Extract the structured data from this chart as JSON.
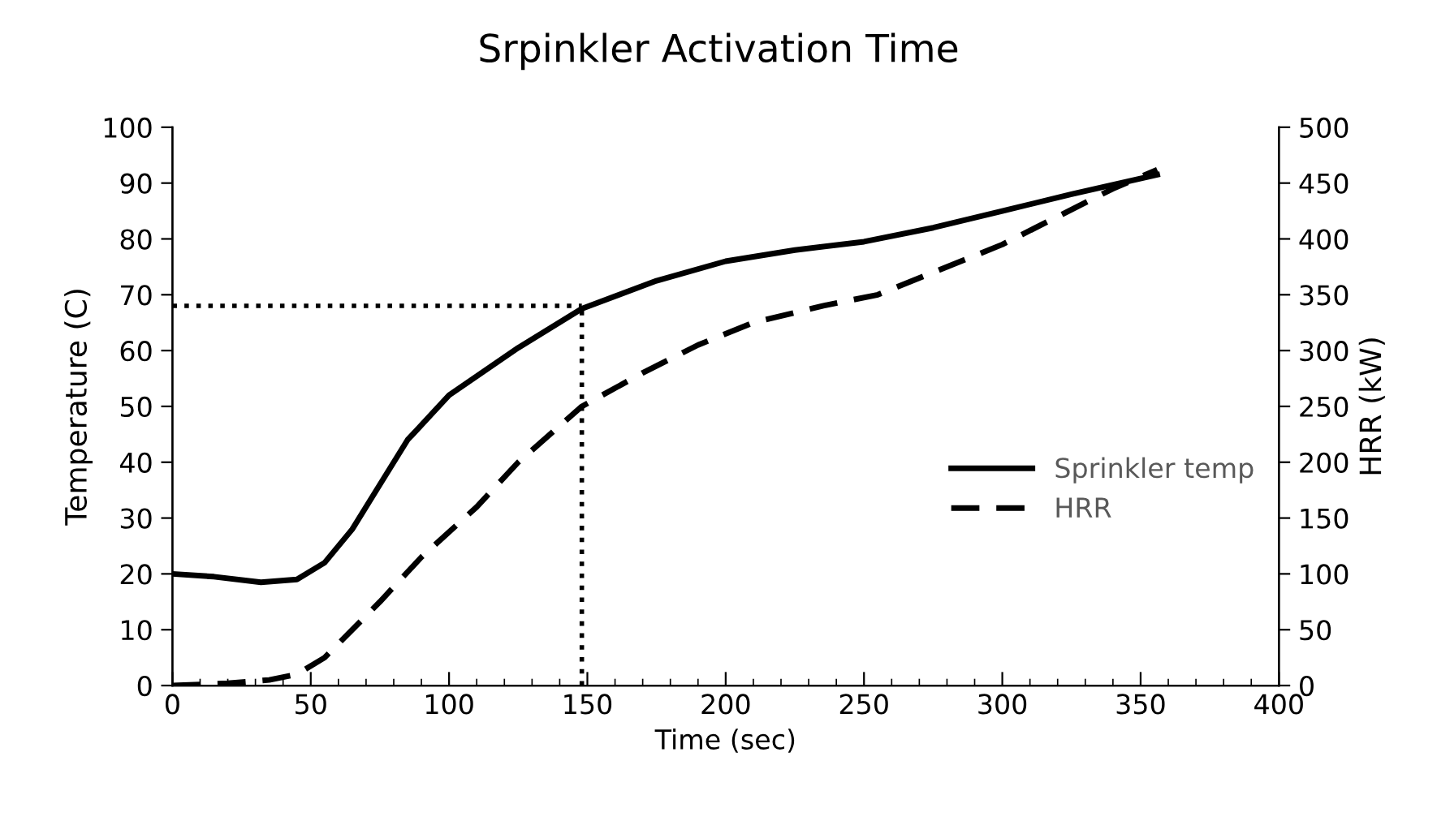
{
  "chart_data": {
    "type": "line",
    "title": "Srpinkler Activation Time",
    "xlabel": "Time (sec)",
    "ylabel": "Temperature (C)",
    "y2label": "HRR (kW)",
    "xlim": [
      0,
      400
    ],
    "xticks": [
      0,
      50,
      100,
      150,
      200,
      250,
      300,
      350,
      400
    ],
    "ylim": [
      0,
      100
    ],
    "yticks": [
      0,
      10,
      20,
      30,
      40,
      50,
      60,
      70,
      80,
      90,
      100
    ],
    "y2lim": [
      0,
      500
    ],
    "y2ticks": [
      0,
      50,
      100,
      150,
      200,
      250,
      300,
      350,
      400,
      450,
      500
    ],
    "grid": false,
    "legend": "right",
    "marker": "none",
    "series": [
      {
        "name": "Sprinkler temp",
        "color": "#000000",
        "line_style": "solid",
        "x": [
          0,
          15,
          32,
          45,
          55,
          65,
          75,
          85,
          100,
          125,
          148,
          175,
          200,
          225,
          250,
          275,
          300,
          325,
          356
        ],
        "values": [
          20,
          19.5,
          18.5,
          19,
          22,
          28,
          36,
          44,
          52,
          60.5,
          67.5,
          72.5,
          76,
          78,
          79.5,
          82,
          85,
          88,
          91.5
        ]
      },
      {
        "name": "HRR",
        "color": "#000000",
        "line_style": "dashed",
        "axis": "y2",
        "x": [
          0,
          20,
          35,
          45,
          55,
          65,
          75,
          90,
          110,
          125,
          148,
          170,
          190,
          210,
          235,
          255,
          275,
          300,
          320,
          340,
          356
        ],
        "values": [
          0,
          2,
          5,
          10,
          25,
          50,
          75,
          115,
          160,
          200,
          250,
          280,
          305,
          325,
          340,
          350,
          370,
          395,
          420,
          445,
          462
        ]
      }
    ],
    "ref_lines": [
      {
        "axis": "y",
        "value": 68,
        "label": null,
        "color": "#000000",
        "line_style": "dotted"
      },
      {
        "axis": "x",
        "value": 148,
        "label": null,
        "color": "#000000",
        "line_style": "dotted"
      }
    ]
  }
}
